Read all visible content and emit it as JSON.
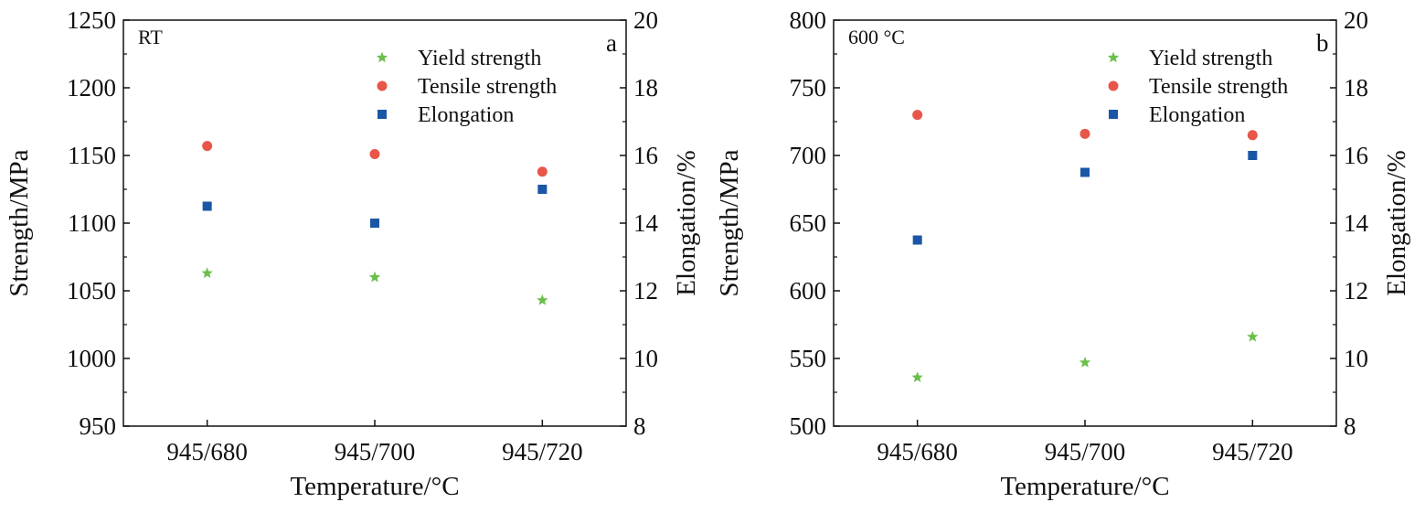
{
  "colors": {
    "yield": "#6abf4b",
    "tensile": "#e8564a",
    "elongation": "#1a56a6"
  },
  "chart_data": [
    {
      "type": "scatter",
      "panel_label": "a",
      "condition_label": "RT",
      "xlabel": "Temperature/°C",
      "ylabel": "Strength/MPa",
      "y2label": "Elongation/%",
      "categories": [
        "945/680",
        "945/700",
        "945/720"
      ],
      "ylim": [
        950,
        1250
      ],
      "yticks": [
        950,
        1000,
        1050,
        1100,
        1150,
        1200,
        1250
      ],
      "y2lim": [
        8,
        20
      ],
      "y2ticks": [
        8,
        10,
        12,
        14,
        16,
        18,
        20
      ],
      "legend_position": "top-right",
      "series": [
        {
          "name": "Yield strength",
          "axis": "left",
          "marker": "star",
          "values": [
            1063,
            1060,
            1043
          ]
        },
        {
          "name": "Tensile strength",
          "axis": "left",
          "marker": "circle",
          "values": [
            1157,
            1151,
            1138
          ]
        },
        {
          "name": "Elongation",
          "axis": "right",
          "marker": "square",
          "values": [
            14.5,
            14.0,
            15.0
          ]
        }
      ]
    },
    {
      "type": "scatter",
      "panel_label": "b",
      "condition_label": "600 °C",
      "xlabel": "Temperature/°C",
      "ylabel": "Strength/MPa",
      "y2label": "Elongation/%",
      "categories": [
        "945/680",
        "945/700",
        "945/720"
      ],
      "ylim": [
        500,
        800
      ],
      "yticks": [
        500,
        550,
        600,
        650,
        700,
        750,
        800
      ],
      "y2lim": [
        8,
        20
      ],
      "y2ticks": [
        8,
        10,
        12,
        14,
        16,
        18,
        20
      ],
      "legend_position": "top-right",
      "series": [
        {
          "name": "Yield strength",
          "axis": "left",
          "marker": "star",
          "values": [
            536,
            547,
            566
          ]
        },
        {
          "name": "Tensile strength",
          "axis": "left",
          "marker": "circle",
          "values": [
            730,
            716,
            715
          ]
        },
        {
          "name": "Elongation",
          "axis": "right",
          "marker": "square",
          "values": [
            13.5,
            15.5,
            16.0
          ]
        }
      ]
    }
  ]
}
